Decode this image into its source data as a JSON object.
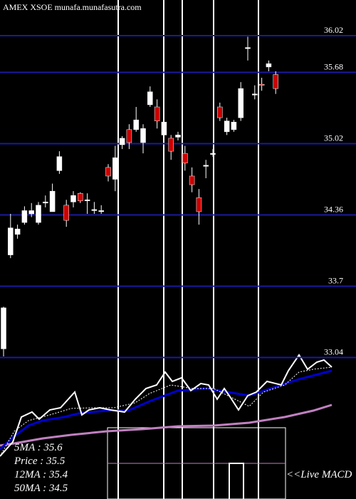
{
  "chart_data": {
    "type": "candlestick",
    "title": "AMEX XSOE munafa.munafasutra.com",
    "ylim": [
      31.73,
      36.35
    ],
    "yticks": [
      36.02,
      35.68,
      35.02,
      34.36,
      33.7,
      33.04
    ],
    "grid": true,
    "up_color": "#ffffff",
    "down_color": "#cc0000",
    "grid_color": "#1a1aa0",
    "open": [
      33.12,
      33.99,
      34.18,
      34.29,
      34.37,
      34.29,
      34.48,
      34.39,
      34.77,
      34.45,
      34.48,
      34.56,
      34.5,
      34.41,
      34.4,
      34.8,
      34.69,
      35.01,
      35.15,
      35.15,
      35.03,
      35.38,
      35.36,
      35.1,
      35.07,
      35.08,
      34.93,
      34.72,
      34.52,
      34.82,
      34.93,
      35.36,
      35.13,
      35.15,
      35.26,
      35.91,
      35.48,
      35.57,
      35.73,
      35.66
    ],
    "close": [
      33.5,
      34.24,
      34.23,
      34.4,
      34.4,
      34.45,
      34.48,
      34.58,
      34.9,
      34.31,
      34.54,
      34.49,
      34.5,
      34.41,
      34.4,
      34.72,
      34.89,
      35.07,
      35.03,
      35.24,
      35.16,
      35.5,
      35.23,
      35.22,
      34.95,
      35.1,
      34.84,
      34.64,
      34.39,
      34.82,
      34.93,
      35.26,
      35.23,
      35.22,
      35.53,
      35.91,
      35.48,
      35.56,
      35.76,
      35.53
    ],
    "high": [
      33.51,
      34.37,
      34.27,
      34.44,
      34.47,
      34.48,
      34.54,
      34.65,
      34.95,
      34.5,
      34.58,
      34.57,
      34.56,
      34.48,
      34.45,
      34.83,
      35.0,
      35.09,
      35.2,
      35.36,
      35.2,
      35.55,
      35.43,
      35.26,
      35.1,
      35.13,
      35.0,
      34.8,
      34.6,
      34.87,
      34.97,
      35.4,
      35.26,
      35.24,
      35.59,
      36.01,
      35.56,
      35.63,
      35.79,
      35.69
    ],
    "low": [
      33.05,
      33.96,
      34.14,
      34.27,
      34.34,
      34.27,
      34.43,
      34.39,
      34.74,
      34.25,
      34.43,
      34.47,
      34.37,
      34.37,
      34.37,
      34.67,
      34.58,
      34.97,
      34.97,
      35.13,
      34.93,
      35.36,
      35.16,
      35.07,
      34.87,
      35.05,
      34.77,
      34.57,
      34.27,
      34.7,
      34.9,
      35.23,
      35.1,
      35.13,
      35.23,
      35.79,
      35.43,
      35.51,
      35.69,
      35.48
    ],
    "legend": [
      "5MA : 35.6",
      "Price : 35.5",
      "12MA : 35.4",
      "50MA : 34.5"
    ],
    "indicator_label": "<<Live MACD"
  }
}
